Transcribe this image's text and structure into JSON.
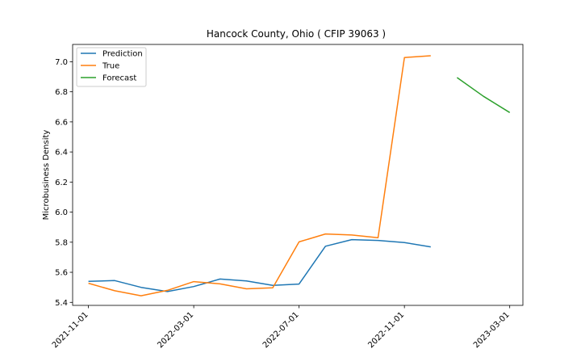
{
  "chart_data": {
    "type": "line",
    "title": "Hancock County, Ohio ( CFIP 39063 )",
    "xlabel": "",
    "ylabel": "Microbusiness Density",
    "xlim": [
      -0.6,
      16.5
    ],
    "ylim": [
      5.38,
      7.115
    ],
    "x_ticks": [
      {
        "pos": 0,
        "label": "2021-11-01"
      },
      {
        "pos": 4,
        "label": "2022-03-01"
      },
      {
        "pos": 8,
        "label": "2022-07-01"
      },
      {
        "pos": 12,
        "label": "2022-11-01"
      },
      {
        "pos": 16,
        "label": "2023-03-01"
      }
    ],
    "y_ticks": [
      5.4,
      5.6,
      5.8,
      6.0,
      6.2,
      6.4,
      6.6,
      6.8,
      7.0
    ],
    "y_tick_labels": [
      "5.4",
      "5.6",
      "5.8",
      "6.0",
      "6.2",
      "6.4",
      "6.6",
      "6.8",
      "7.0"
    ],
    "grid": false,
    "legend_position": "top-left",
    "series": [
      {
        "name": "Prediction",
        "color": "#1f77b4",
        "x": [
          0,
          1,
          2,
          3,
          4,
          5,
          6,
          7,
          8,
          9,
          10,
          11,
          12,
          13
        ],
        "values": [
          5.54,
          5.545,
          5.5,
          5.472,
          5.505,
          5.555,
          5.543,
          5.513,
          5.522,
          5.773,
          5.817,
          5.812,
          5.798,
          5.769
        ]
      },
      {
        "name": "True",
        "color": "#ff7f0e",
        "x": [
          0,
          1,
          2,
          3,
          4,
          5,
          6,
          7,
          8,
          9,
          10,
          11,
          12,
          13
        ],
        "values": [
          5.527,
          5.477,
          5.444,
          5.48,
          5.538,
          5.523,
          5.49,
          5.497,
          5.802,
          5.855,
          5.848,
          5.83,
          7.028,
          7.04
        ]
      },
      {
        "name": "Forecast",
        "color": "#2ca02c",
        "x": [
          14,
          15,
          16
        ],
        "values": [
          6.895,
          6.77,
          6.662
        ]
      }
    ]
  }
}
